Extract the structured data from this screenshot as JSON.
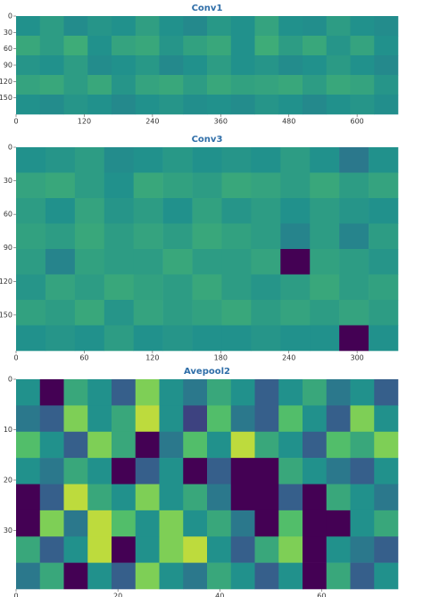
{
  "chart_data": [
    {
      "type": "heatmap",
      "title": "Conv1",
      "colormap": "viridis",
      "clim": [
        0,
        1
      ],
      "xlim": [
        0,
        672
      ],
      "ylim": [
        0,
        180
      ],
      "xticks": [
        0,
        120,
        240,
        360,
        480,
        600
      ],
      "yticks": [
        0,
        30,
        60,
        90,
        120,
        150
      ],
      "values": [
        [
          0.5,
          0.55,
          0.48,
          0.52,
          0.5,
          0.56,
          0.5,
          0.47,
          0.53,
          0.5,
          0.58,
          0.5,
          0.49,
          0.55,
          0.5,
          0.48
        ],
        [
          0.6,
          0.55,
          0.62,
          0.5,
          0.58,
          0.6,
          0.52,
          0.57,
          0.6,
          0.5,
          0.62,
          0.55,
          0.6,
          0.52,
          0.58,
          0.5
        ],
        [
          0.52,
          0.5,
          0.55,
          0.48,
          0.5,
          0.53,
          0.47,
          0.5,
          0.55,
          0.5,
          0.52,
          0.48,
          0.5,
          0.54,
          0.5,
          0.47
        ],
        [
          0.58,
          0.6,
          0.55,
          0.6,
          0.52,
          0.58,
          0.6,
          0.55,
          0.6,
          0.57,
          0.58,
          0.6,
          0.55,
          0.6,
          0.58,
          0.52
        ],
        [
          0.5,
          0.48,
          0.52,
          0.5,
          0.47,
          0.5,
          0.52,
          0.49,
          0.5,
          0.48,
          0.52,
          0.5,
          0.47,
          0.5,
          0.52,
          0.49
        ]
      ]
    },
    {
      "type": "heatmap",
      "title": "Conv3",
      "colormap": "viridis",
      "clim": [
        0,
        1
      ],
      "xlim": [
        0,
        336
      ],
      "ylim": [
        0,
        182
      ],
      "xticks": [
        0,
        60,
        120,
        180,
        240,
        300
      ],
      "yticks": [
        0,
        30,
        60,
        90,
        120,
        150
      ],
      "values": [
        [
          0.5,
          0.52,
          0.55,
          0.48,
          0.5,
          0.53,
          0.5,
          0.52,
          0.5,
          0.55,
          0.5,
          0.4,
          0.5
        ],
        [
          0.58,
          0.6,
          0.55,
          0.5,
          0.6,
          0.57,
          0.55,
          0.6,
          0.58,
          0.55,
          0.6,
          0.55,
          0.58
        ],
        [
          0.55,
          0.5,
          0.58,
          0.52,
          0.55,
          0.5,
          0.57,
          0.52,
          0.55,
          0.5,
          0.55,
          0.52,
          0.5
        ],
        [
          0.57,
          0.55,
          0.6,
          0.55,
          0.58,
          0.55,
          0.6,
          0.57,
          0.55,
          0.45,
          0.55,
          0.45,
          0.55
        ],
        [
          0.55,
          0.45,
          0.57,
          0.55,
          0.55,
          0.6,
          0.55,
          0.55,
          0.58,
          0,
          0.57,
          0.55,
          0.52
        ],
        [
          0.52,
          0.58,
          0.55,
          0.6,
          0.57,
          0.55,
          0.6,
          0.55,
          0.52,
          0.55,
          0.6,
          0.55,
          0.57
        ],
        [
          0.57,
          0.55,
          0.6,
          0.52,
          0.58,
          0.55,
          0.57,
          0.6,
          0.55,
          0.58,
          0.55,
          0.58,
          0.55
        ],
        [
          0.5,
          0.52,
          0.5,
          0.55,
          0.5,
          0.52,
          0.5,
          0.5,
          0.52,
          0.5,
          0.5,
          0,
          0.5
        ]
      ]
    },
    {
      "type": "heatmap",
      "title": "Avepool2",
      "colormap": "viridis",
      "clim": [
        0,
        1
      ],
      "xlim": [
        0,
        75
      ],
      "ylim": [
        0,
        41.6
      ],
      "xticks": [
        0,
        20,
        40,
        60
      ],
      "yticks": [
        0,
        10,
        20,
        30
      ],
      "values": [
        [
          0.5,
          0,
          0.6,
          0.5,
          0.3,
          0.8,
          0.5,
          0.4,
          0.6,
          0.5,
          0.3,
          0.5,
          0.6,
          0.4,
          0.5,
          0.3
        ],
        [
          0.4,
          0.3,
          0.8,
          0.5,
          0.6,
          0.9,
          0.5,
          0.2,
          0.7,
          0.4,
          0.3,
          0.7,
          0.5,
          0.3,
          0.8,
          0.5
        ],
        [
          0.7,
          0.5,
          0.3,
          0.8,
          0.6,
          0,
          0.4,
          0.7,
          0.5,
          0.9,
          0.6,
          0.5,
          0.3,
          0.7,
          0.6,
          0.8
        ],
        [
          0.5,
          0.4,
          0.6,
          0.5,
          0,
          0.3,
          0.5,
          0,
          0.3,
          0,
          0,
          0.6,
          0.5,
          0.4,
          0.3,
          0.5
        ],
        [
          0,
          0.3,
          0.9,
          0.6,
          0.5,
          0.8,
          0.5,
          0.6,
          0.4,
          0,
          0,
          0.3,
          0,
          0.6,
          0.5,
          0.4
        ],
        [
          0,
          0.8,
          0.4,
          0.9,
          0.7,
          0.5,
          0.8,
          0.5,
          0.6,
          0.4,
          0,
          0.7,
          0,
          0,
          0.5,
          0.6
        ],
        [
          0.6,
          0.3,
          0.5,
          0.9,
          0,
          0.5,
          0.8,
          0.9,
          0.5,
          0.3,
          0.6,
          0.8,
          0,
          0.5,
          0.4,
          0.3
        ],
        [
          0.4,
          0.6,
          0,
          0.5,
          0.3,
          0.8,
          0.5,
          0.4,
          0.6,
          0.5,
          0.3,
          0.5,
          0,
          0.6,
          0.3,
          0.5
        ]
      ]
    }
  ]
}
